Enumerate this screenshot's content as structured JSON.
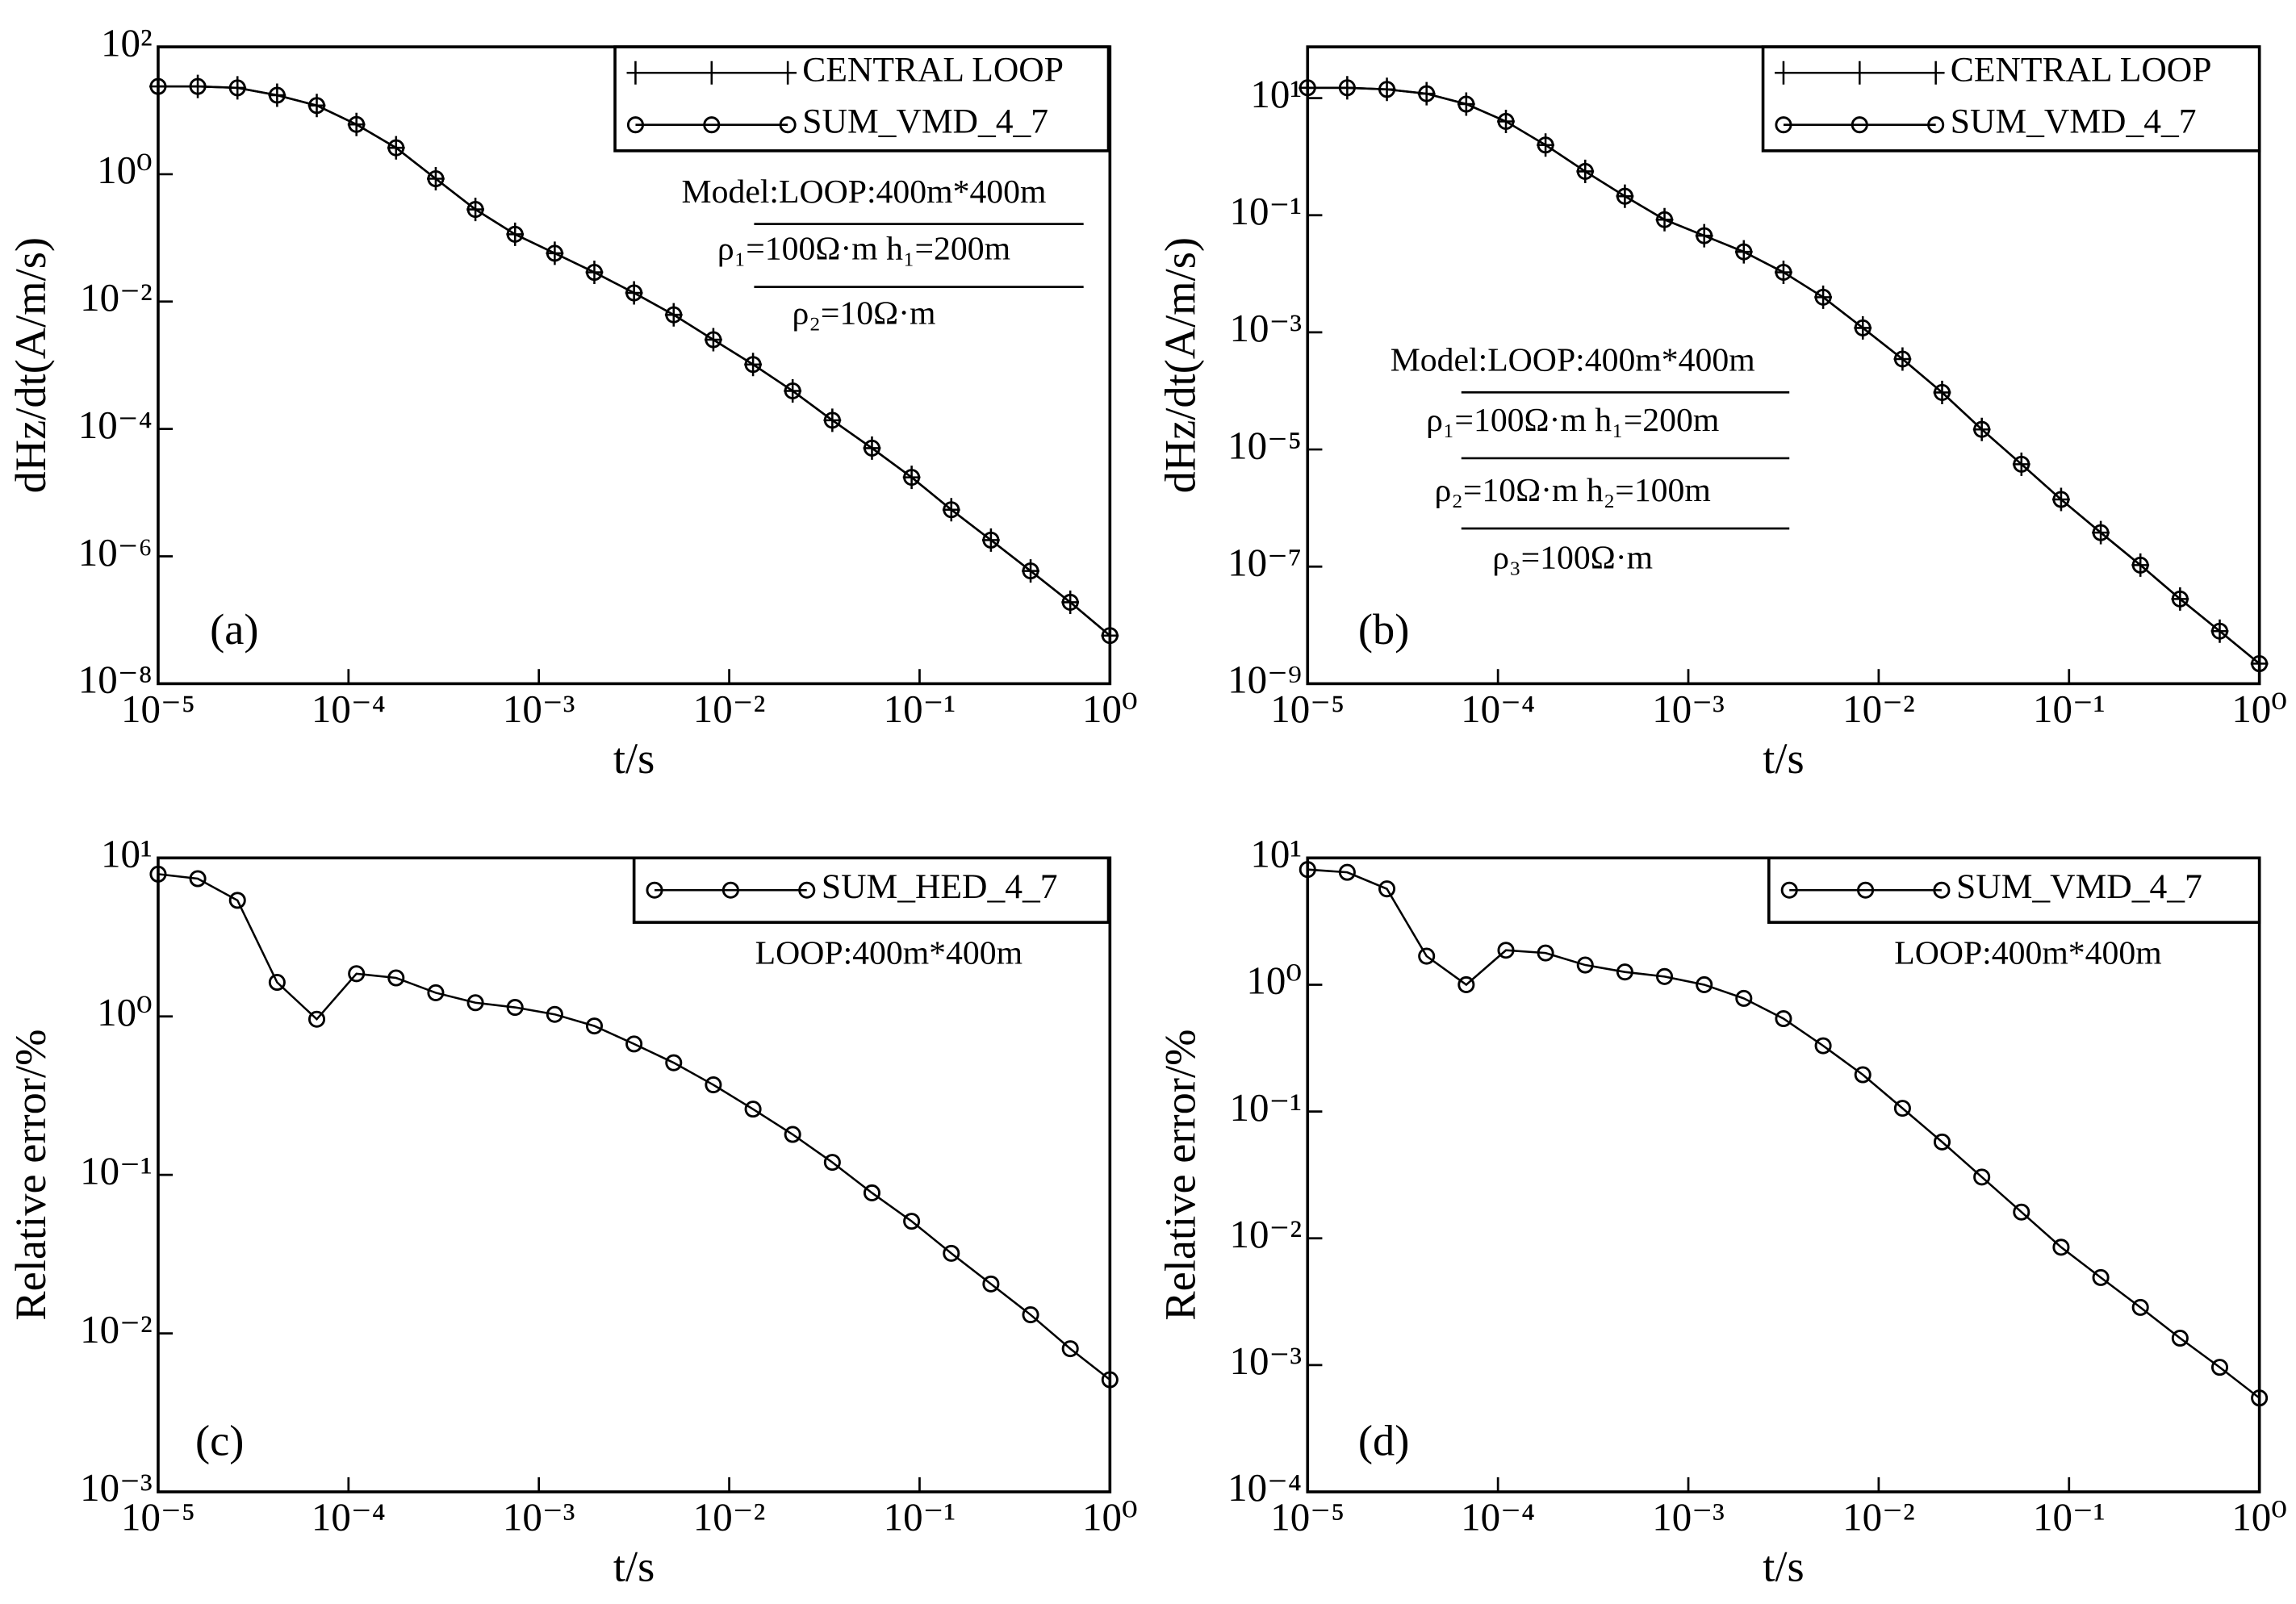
{
  "chart_data": [
    {
      "type": "line",
      "panel": "(a)",
      "xlabel": "t/s",
      "ylabel": "dHz/dt(A/m/s)",
      "xscale": "log",
      "yscale": "log",
      "legend": "upper right",
      "annotations": [
        "Model:LOOP:400m*400m",
        "ρ₁=100Ω·m  h₁=200m",
        "ρ₂=10Ω·m"
      ],
      "x": [
        1e-05,
        1.615e-05,
        2.61e-05,
        4.217e-05,
        6.813e-05,
        0.0001101,
        0.0001778,
        0.0002873,
        0.0004642,
        0.0007499,
        0.001212,
        0.001957,
        0.003162,
        0.005109,
        0.008254,
        0.01334,
        0.02154,
        0.03481,
        0.05623,
        0.09085,
        0.1468,
        0.2371,
        0.3831,
        0.619,
        1
      ],
      "xlim": [
        1e-05,
        1
      ],
      "xticks": [
        {
          "value": 1e-05,
          "label": "10⁻⁵"
        },
        {
          "value": 0.0001,
          "label": "10⁻⁴"
        },
        {
          "value": 0.001,
          "label": "10⁻³"
        },
        {
          "value": 0.01,
          "label": "10⁻²"
        },
        {
          "value": 0.1,
          "label": "10⁻¹"
        },
        {
          "value": 1,
          "label": "10⁰"
        }
      ],
      "ylim": [
        1e-08,
        100
      ],
      "yticks": [
        {
          "value": 1e-08,
          "label": "10⁻⁸"
        },
        {
          "value": 1e-06,
          "label": "10⁻⁶"
        },
        {
          "value": 0.0001,
          "label": "10⁻⁴"
        },
        {
          "value": 0.01,
          "label": "10⁻²"
        },
        {
          "value": 1,
          "label": "10⁰"
        },
        {
          "value": 100,
          "label": "10²"
        }
      ],
      "series": [
        {
          "name": "CENTRAL LOOP",
          "color": "#000000",
          "marker": "plus",
          "values": [
            23.9,
            23.9,
            22.7,
            17.4,
            12.0,
            6.05,
            2.6,
            0.85,
            0.28,
            0.114,
            0.0574,
            0.0288,
            0.0137,
            0.0062,
            0.00252,
            0.00103,
            0.000396,
            0.000137,
            5e-05,
            1.74e-05,
            5.4e-06,
            1.8e-06,
            5.9e-07,
            1.9e-07,
            5.7e-08
          ]
        },
        {
          "name": "SUM_VMD_4_7",
          "color": "#000000",
          "marker": "circle",
          "values": [
            23.9,
            23.9,
            22.7,
            17.4,
            12.0,
            6.05,
            2.6,
            0.85,
            0.28,
            0.114,
            0.0574,
            0.0288,
            0.0137,
            0.0062,
            0.00252,
            0.00103,
            0.000396,
            0.000137,
            5e-05,
            1.74e-05,
            5.4e-06,
            1.8e-06,
            5.9e-07,
            1.9e-07,
            5.7e-08
          ]
        }
      ]
    },
    {
      "type": "line",
      "panel": "(b)",
      "xlabel": "t/s",
      "ylabel": "dHz/dt(A/m/s)",
      "xscale": "log",
      "yscale": "log",
      "legend": "upper right",
      "annotations": [
        "Model:LOOP:400m*400m",
        "ρ₁=100Ω·m  h₁=200m",
        "ρ₂=10Ω·m  h₂=100m",
        "ρ₃=100Ω·m"
      ],
      "x": [
        1e-05,
        1.615e-05,
        2.61e-05,
        4.217e-05,
        6.813e-05,
        0.0001101,
        0.0001778,
        0.0002873,
        0.0004642,
        0.0007499,
        0.001212,
        0.001957,
        0.003162,
        0.005109,
        0.008254,
        0.01334,
        0.02154,
        0.03481,
        0.05623,
        0.09085,
        0.1468,
        0.2371,
        0.3831,
        0.619,
        1
      ],
      "xlim": [
        1e-05,
        1
      ],
      "xticks": [
        {
          "value": 1e-05,
          "label": "10⁻⁵"
        },
        {
          "value": 0.0001,
          "label": "10⁻⁴"
        },
        {
          "value": 0.001,
          "label": "10⁻³"
        },
        {
          "value": 0.01,
          "label": "10⁻²"
        },
        {
          "value": 0.1,
          "label": "10⁻¹"
        },
        {
          "value": 1,
          "label": "10⁰"
        }
      ],
      "ylim": [
        1e-09,
        75
      ],
      "yticks": [
        {
          "value": 1e-09,
          "label": "10⁻⁹"
        },
        {
          "value": 1e-07,
          "label": "10⁻⁷"
        },
        {
          "value": 1e-05,
          "label": "10⁻⁵"
        },
        {
          "value": 0.001,
          "label": "10⁻³"
        },
        {
          "value": 0.1,
          "label": "10⁻¹"
        },
        {
          "value": 10,
          "label": "10¹"
        }
      ],
      "series": [
        {
          "name": "CENTRAL LOOP",
          "color": "#000000",
          "marker": "plus",
          "values": [
            15,
            15,
            14.1,
            11.9,
            7.9,
            4.0,
            1.58,
            0.56,
            0.211,
            0.084,
            0.0447,
            0.0237,
            0.0106,
            0.00398,
            0.00119,
            0.00035,
            9.4e-05,
            2.2e-05,
            5.6e-06,
            1.4e-06,
            3.8e-07,
            1.06e-07,
            2.8e-08,
            7.9e-09,
            2.2e-09
          ]
        },
        {
          "name": "SUM_VMD_4_7",
          "color": "#000000",
          "marker": "circle",
          "values": [
            15,
            15,
            14.1,
            11.9,
            7.9,
            4.0,
            1.58,
            0.56,
            0.211,
            0.084,
            0.0447,
            0.0237,
            0.0106,
            0.00398,
            0.00119,
            0.00035,
            9.4e-05,
            2.2e-05,
            5.6e-06,
            1.4e-06,
            3.8e-07,
            1.06e-07,
            2.8e-08,
            7.9e-09,
            2.2e-09
          ]
        }
      ]
    },
    {
      "type": "line",
      "panel": "(c)",
      "xlabel": "t/s",
      "ylabel": "Relative error/%",
      "xscale": "log",
      "yscale": "log",
      "legend": "upper right",
      "annotations": [
        "LOOP:400m*400m"
      ],
      "x": [
        1e-05,
        1.615e-05,
        2.61e-05,
        4.217e-05,
        6.813e-05,
        0.0001101,
        0.0001778,
        0.0002873,
        0.0004642,
        0.0007499,
        0.001212,
        0.001957,
        0.003162,
        0.005109,
        0.008254,
        0.01334,
        0.02154,
        0.03481,
        0.05623,
        0.09085,
        0.1468,
        0.2371,
        0.3831,
        0.619,
        1
      ],
      "xlim": [
        1e-05,
        1
      ],
      "xticks": [
        {
          "value": 1e-05,
          "label": "10⁻⁵"
        },
        {
          "value": 0.0001,
          "label": "10⁻⁴"
        },
        {
          "value": 0.001,
          "label": "10⁻³"
        },
        {
          "value": 0.01,
          "label": "10⁻²"
        },
        {
          "value": 0.1,
          "label": "10⁻¹"
        },
        {
          "value": 1,
          "label": "10⁰"
        }
      ],
      "ylim": [
        0.001,
        10
      ],
      "yticks": [
        {
          "value": 0.001,
          "label": "10⁻³"
        },
        {
          "value": 0.01,
          "label": "10⁻²"
        },
        {
          "value": 0.1,
          "label": "10⁻¹"
        },
        {
          "value": 1,
          "label": "10⁰"
        },
        {
          "value": 10,
          "label": "10¹"
        }
      ],
      "series": [
        {
          "name": "SUM_HED_4_7",
          "color": "#000000",
          "marker": "circle",
          "values": [
            7.9,
            7.4,
            5.4,
            1.64,
            0.96,
            1.86,
            1.75,
            1.41,
            1.22,
            1.14,
            1.03,
            0.87,
            0.67,
            0.51,
            0.37,
            0.26,
            0.18,
            0.12,
            0.077,
            0.051,
            0.032,
            0.0205,
            0.0131,
            0.008,
            0.0051
          ]
        }
      ]
    },
    {
      "type": "line",
      "panel": "(d)",
      "xlabel": "t/s",
      "ylabel": "Relative error/%",
      "xscale": "log",
      "yscale": "log",
      "legend": "upper right",
      "annotations": [
        "LOOP:400m*400m"
      ],
      "x": [
        1e-05,
        1.615e-05,
        2.61e-05,
        4.217e-05,
        6.813e-05,
        0.0001101,
        0.0001778,
        0.0002873,
        0.0004642,
        0.0007499,
        0.001212,
        0.001957,
        0.003162,
        0.005109,
        0.008254,
        0.01334,
        0.02154,
        0.03481,
        0.05623,
        0.09085,
        0.1468,
        0.2371,
        0.3831,
        0.619,
        1
      ],
      "xlim": [
        1e-05,
        1
      ],
      "xticks": [
        {
          "value": 1e-05,
          "label": "10⁻⁵"
        },
        {
          "value": 0.0001,
          "label": "10⁻⁴"
        },
        {
          "value": 0.001,
          "label": "10⁻³"
        },
        {
          "value": 0.01,
          "label": "10⁻²"
        },
        {
          "value": 0.1,
          "label": "10⁻¹"
        },
        {
          "value": 1,
          "label": "10⁰"
        }
      ],
      "ylim": [
        0.0001,
        10
      ],
      "yticks": [
        {
          "value": 0.0001,
          "label": "10⁻⁴"
        },
        {
          "value": 0.001,
          "label": "10⁻³"
        },
        {
          "value": 0.01,
          "label": "10⁻²"
        },
        {
          "value": 0.1,
          "label": "10⁻¹"
        },
        {
          "value": 1,
          "label": "10⁰"
        },
        {
          "value": 10,
          "label": "10¹"
        }
      ],
      "series": [
        {
          "name": "SUM_VMD_4_7",
          "color": "#000000",
          "marker": "circle",
          "values": [
            8.1,
            7.7,
            5.7,
            1.68,
            1.0,
            1.87,
            1.78,
            1.43,
            1.26,
            1.16,
            1.0,
            0.78,
            0.54,
            0.33,
            0.195,
            0.106,
            0.0575,
            0.0304,
            0.0161,
            0.0085,
            0.0049,
            0.00285,
            0.00163,
            0.00096,
            0.00055
          ]
        }
      ]
    }
  ]
}
